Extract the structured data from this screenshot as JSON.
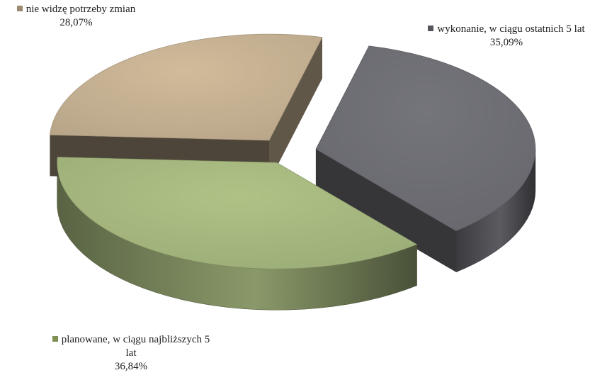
{
  "chart_data": {
    "type": "pie",
    "style": "3d-exploded",
    "title": "",
    "slices": [
      {
        "label": "wykonanie, w ciągu ostatnich 5 lat",
        "value": 35.09,
        "value_label": "35,09%",
        "color": "#6b6b72"
      },
      {
        "label": "planowane, w ciągu najbliższych 5 lat",
        "value": 36.84,
        "value_label": "36,84%",
        "color": "#a2b47c"
      },
      {
        "label": "nie widzę potrzeby zmian",
        "value": 28.07,
        "value_label": "28,07%",
        "color": "#c1ad8f"
      }
    ],
    "legend_placement": "labels-outside-slices"
  }
}
